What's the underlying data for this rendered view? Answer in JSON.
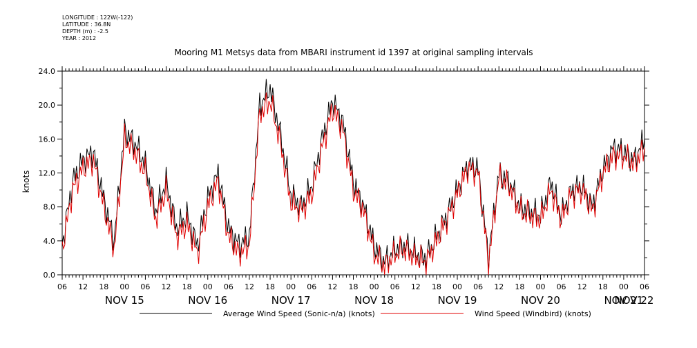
{
  "meta": {
    "longitude": "LONGITUDE : 122W(-122)",
    "latitude": "LATITUDE : 36.8N",
    "depth": "DEPTH (m) : -2.5",
    "year": "YEAR : 2012"
  },
  "chart_data": {
    "type": "line",
    "title": "Mooring M1 Metsys data from MBARI instrument id 1397 at original sampling intervals",
    "ylabel": "knots",
    "xlabel": "",
    "ylim": [
      0,
      24
    ],
    "y_ticks": [
      "0.0",
      "4.0",
      "8.0",
      "12.0",
      "16.0",
      "20.0",
      "24.0"
    ],
    "x_range_hours_label": "Nov 15 06:00 – Nov 22 06:00 (2012)",
    "hour_tick_labels": [
      "06",
      "12",
      "18",
      "00",
      "06",
      "12",
      "18",
      "00",
      "06",
      "12",
      "18",
      "00",
      "06",
      "12",
      "18",
      "00",
      "06",
      "12",
      "18",
      "00",
      "06",
      "12",
      "18",
      "00",
      "06",
      "12",
      "18",
      "00",
      "06"
    ],
    "date_labels": [
      "NOV 15",
      "NOV 16",
      "NOV 17",
      "NOV 18",
      "NOV 19",
      "NOV 20",
      "NOV 21",
      "NOV 22"
    ],
    "grid": false,
    "legend_position": "bottom",
    "series": [
      {
        "name": "Average Wind Speed (Sonic-n/a) (knots)",
        "color": "#000000",
        "x_hours": [
          0,
          3,
          6,
          9,
          12,
          15,
          18,
          21,
          24,
          27,
          30,
          33,
          36,
          39,
          42,
          45,
          48,
          51,
          54,
          57,
          60,
          63,
          66,
          69,
          72,
          75,
          78,
          81,
          84,
          87,
          90,
          93,
          96,
          99,
          102,
          105,
          108,
          111,
          114,
          117,
          120,
          123,
          126,
          129,
          132,
          135,
          138,
          141,
          144,
          147,
          150,
          153,
          156,
          159,
          162,
          165,
          168
        ],
        "values": [
          3.5,
          11.0,
          13.5,
          14.5,
          9.0,
          4.0,
          17.0,
          15.5,
          13.0,
          7.5,
          11.0,
          5.5,
          7.0,
          3.5,
          9.0,
          12.0,
          5.5,
          3.5,
          4.5,
          20.0,
          22.0,
          16.5,
          9.5,
          8.0,
          10.5,
          16.0,
          20.5,
          18.0,
          11.0,
          8.0,
          3.5,
          1.5,
          3.0,
          3.5,
          2.5,
          2.0,
          4.5,
          7.0,
          10.0,
          13.0,
          12.5,
          2.0,
          12.0,
          11.0,
          8.0,
          7.5,
          7.0,
          11.0,
          7.0,
          10.0,
          10.5,
          8.0,
          12.5,
          15.0,
          14.5,
          13.5,
          16.0
        ]
      },
      {
        "name": "Wind Speed (Windbird) (knots)",
        "color": "#e00000",
        "x_hours": [
          0,
          3,
          6,
          9,
          12,
          15,
          18,
          21,
          24,
          27,
          30,
          33,
          36,
          39,
          42,
          45,
          48,
          51,
          54,
          57,
          60,
          63,
          66,
          69,
          72,
          75,
          78,
          81,
          84,
          87,
          90,
          93,
          96,
          99,
          102,
          105,
          108,
          111,
          114,
          117,
          120,
          123,
          126,
          129,
          132,
          135,
          138,
          141,
          144,
          147,
          150,
          153,
          156,
          159,
          162,
          165,
          168
        ],
        "values": [
          3.0,
          10.0,
          12.5,
          13.5,
          8.0,
          3.0,
          16.0,
          14.5,
          12.0,
          6.5,
          10.0,
          4.5,
          6.0,
          2.5,
          8.0,
          11.0,
          4.5,
          2.5,
          3.5,
          19.0,
          20.5,
          15.5,
          8.5,
          7.5,
          9.5,
          15.0,
          19.5,
          17.0,
          10.0,
          7.5,
          2.5,
          1.0,
          2.5,
          3.0,
          2.0,
          1.5,
          4.0,
          6.5,
          9.5,
          12.5,
          12.0,
          1.5,
          11.5,
          10.5,
          7.5,
          7.0,
          6.5,
          10.0,
          6.5,
          9.5,
          10.0,
          7.5,
          12.0,
          14.0,
          14.0,
          13.0,
          15.0
        ]
      }
    ]
  }
}
